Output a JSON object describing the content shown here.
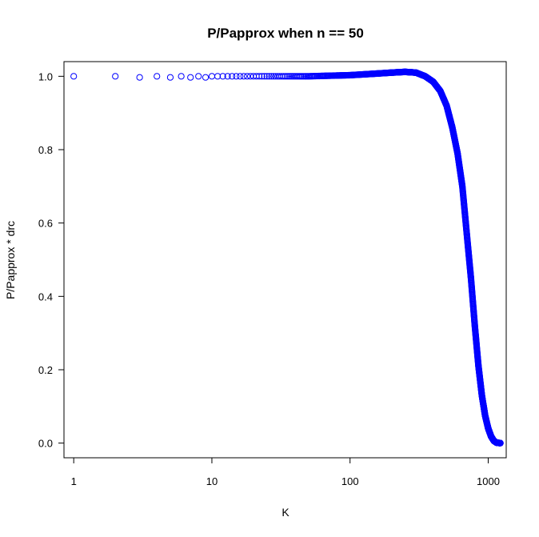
{
  "chart_data": {
    "type": "scatter",
    "title": "P/Papprox when n == 50",
    "xlabel": "K",
    "ylabel": "P/Papprox * drc",
    "x_scale": "log",
    "xlim": [
      0.85,
      1350
    ],
    "ylim": [
      -0.04,
      1.04
    ],
    "x_ticks": [
      1,
      10,
      100,
      1000
    ],
    "x_tick_labels": [
      "1",
      "10",
      "100",
      "1000"
    ],
    "y_ticks": [
      0.0,
      0.2,
      0.4,
      0.6,
      0.8,
      1.0
    ],
    "y_tick_labels": [
      "0.0",
      "0.2",
      "0.4",
      "0.6",
      "0.8",
      "1.0"
    ],
    "grid": false,
    "marker": "open-circle",
    "color": "#0000ff",
    "series": [
      {
        "x_range": [
          1,
          1225
        ],
        "x_step": 1,
        "shape": {
          "points": [
            [
              1,
              1.0
            ],
            [
              2,
              1.0
            ],
            [
              3,
              0.997
            ],
            [
              4,
              1.0
            ],
            [
              5,
              0.997
            ],
            [
              6,
              1.0
            ],
            [
              7,
              0.997
            ],
            [
              8,
              1.0
            ],
            [
              9,
              0.997
            ],
            [
              10,
              1.0
            ],
            [
              20,
              1.0
            ],
            [
              50,
              1.0
            ],
            [
              100,
              1.003
            ],
            [
              150,
              1.007
            ],
            [
              200,
              1.01
            ],
            [
              250,
              1.012
            ],
            [
              300,
              1.01
            ],
            [
              350,
              1.0
            ],
            [
              400,
              0.985
            ],
            [
              450,
              0.96
            ],
            [
              500,
              0.92
            ],
            [
              550,
              0.86
            ],
            [
              600,
              0.79
            ],
            [
              650,
              0.7
            ],
            [
              700,
              0.57
            ],
            [
              750,
              0.45
            ],
            [
              800,
              0.32
            ],
            [
              850,
              0.21
            ],
            [
              900,
              0.13
            ],
            [
              950,
              0.075
            ],
            [
              1000,
              0.04
            ],
            [
              1050,
              0.018
            ],
            [
              1100,
              0.006
            ],
            [
              1150,
              0.001
            ],
            [
              1225,
              0.0
            ]
          ]
        }
      }
    ]
  }
}
